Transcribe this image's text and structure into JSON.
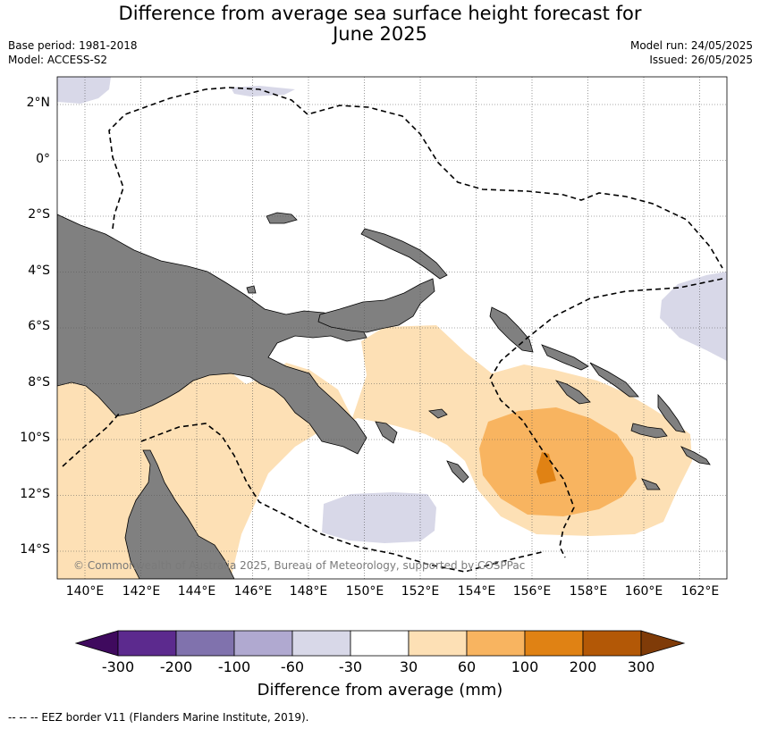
{
  "title_line1": "Difference from average sea surface height forecast for",
  "title_line2": "June 2025",
  "base_period": "Base period: 1981-2018",
  "model": "Model: ACCESS-S2",
  "model_run": "Model run: 24/05/2025",
  "issued": "Issued: 26/05/2025",
  "copyright": "© Commonwealth of Australia 2025, Bureau of Meteorology, supported by COSPPac",
  "lat_labels": [
    "2°N",
    "0°",
    "2°S",
    "4°S",
    "6°S",
    "8°S",
    "10°S",
    "12°S",
    "14°S"
  ],
  "lon_labels": [
    "140°E",
    "142°E",
    "144°E",
    "146°E",
    "148°E",
    "150°E",
    "152°E",
    "154°E",
    "156°E",
    "158°E",
    "160°E",
    "162°E"
  ],
  "colorbar": {
    "label": "Difference from average (mm)",
    "ticks": [
      "-300",
      "-200",
      "-100",
      "-60",
      "-30",
      "30",
      "60",
      "100",
      "200",
      "300"
    ],
    "colors": [
      "#3f0a5e",
      "#5c2a8e",
      "#8072ad",
      "#b0a9d0",
      "#d8d8e8",
      "#ffffff",
      "#fde0b5",
      "#f8b460",
      "#e08214",
      "#b35806",
      "#7f3b08"
    ]
  },
  "legend_note": "--  --  -- EEZ border V11 (Flanders Marine Institute, 2019).",
  "colors": {
    "land": "#808080",
    "pos_30_60": "#fde0b5",
    "pos_60_100": "#f8b460",
    "pos_100_200": "#e08214",
    "neg_30_60": "#d8d8e8"
  }
}
